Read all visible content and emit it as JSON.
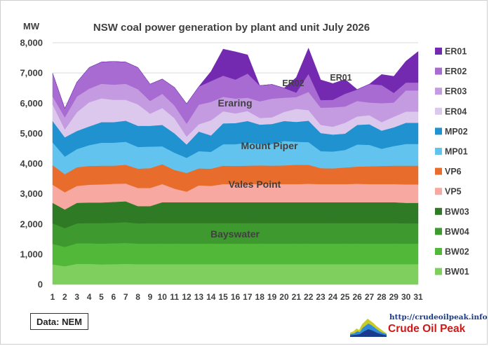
{
  "chart_data": {
    "type": "area",
    "stacked": true,
    "title": "NSW coal power generation by plant and unit July 2026",
    "ylabel": "MW",
    "xlabel": "",
    "ylim": [
      0,
      8000
    ],
    "yticks": [
      "0",
      "1,000",
      "2,000",
      "3,000",
      "4,000",
      "5,000",
      "6,000",
      "7,000",
      "8,000"
    ],
    "x": [
      1,
      2,
      3,
      4,
      5,
      6,
      7,
      8,
      9,
      10,
      11,
      12,
      13,
      14,
      15,
      16,
      17,
      18,
      19,
      20,
      21,
      22,
      23,
      24,
      25,
      26,
      27,
      28,
      29,
      30,
      31
    ],
    "grid": true,
    "legend_position": "right",
    "series": [
      {
        "name": "BW01",
        "color": "#7fcf5f",
        "values": [
          660,
          600,
          680,
          680,
          660,
          670,
          680,
          670,
          670,
          670,
          670,
          670,
          670,
          670,
          670,
          670,
          670,
          670,
          670,
          670,
          670,
          670,
          670,
          670,
          670,
          670,
          670,
          670,
          670,
          670,
          670
        ]
      },
      {
        "name": "BW02",
        "color": "#52b83a",
        "values": [
          680,
          640,
          680,
          680,
          690,
          690,
          690,
          680,
          680,
          680,
          680,
          680,
          680,
          680,
          680,
          680,
          680,
          680,
          680,
          680,
          680,
          680,
          680,
          680,
          680,
          680,
          680,
          680,
          680,
          680,
          680
        ]
      },
      {
        "name": "BW04",
        "color": "#3e9a2e",
        "values": [
          680,
          620,
          660,
          670,
          680,
          680,
          690,
          670,
          680,
          680,
          680,
          680,
          680,
          680,
          680,
          680,
          680,
          680,
          680,
          680,
          680,
          680,
          680,
          680,
          680,
          680,
          680,
          680,
          680,
          670,
          670
        ]
      },
      {
        "name": "BW03",
        "color": "#2f7a24",
        "values": [
          680,
          620,
          680,
          680,
          680,
          690,
          690,
          570,
          560,
          690,
          690,
          690,
          690,
          690,
          690,
          690,
          690,
          690,
          690,
          690,
          690,
          690,
          690,
          690,
          690,
          690,
          690,
          690,
          690,
          680,
          680
        ]
      },
      {
        "name": "VP5",
        "color": "#f7a8a0",
        "values": [
          600,
          570,
          560,
          590,
          600,
          600,
          590,
          600,
          600,
          600,
          450,
          350,
          560,
          540,
          600,
          600,
          600,
          600,
          600,
          600,
          600,
          610,
          600,
          600,
          600,
          610,
          600,
          600,
          600,
          610,
          610
        ]
      },
      {
        "name": "VP6",
        "color": "#e86d2c",
        "values": [
          650,
          600,
          620,
          620,
          620,
          600,
          620,
          640,
          660,
          660,
          620,
          620,
          560,
          570,
          610,
          600,
          610,
          620,
          610,
          620,
          640,
          630,
          530,
          520,
          550,
          570,
          590,
          600,
          610,
          620,
          620
        ]
      },
      {
        "name": "MP01",
        "color": "#62c4ee",
        "values": [
          750,
          580,
          600,
          690,
          760,
          760,
          760,
          720,
          710,
          590,
          570,
          500,
          570,
          560,
          710,
          720,
          760,
          710,
          720,
          810,
          760,
          750,
          560,
          560,
          580,
          730,
          710,
          570,
          650,
          720,
          720
        ]
      },
      {
        "name": "MP02",
        "color": "#1f92cf",
        "values": [
          710,
          640,
          600,
          620,
          680,
          680,
          700,
          700,
          690,
          710,
          640,
          440,
          650,
          540,
          690,
          700,
          720,
          640,
          660,
          660,
          660,
          710,
          600,
          560,
          540,
          650,
          680,
          600,
          620,
          700,
          700
        ]
      },
      {
        "name": "ER04",
        "color": "#dcc8ec",
        "values": [
          550,
          260,
          620,
          800,
          790,
          740,
          690,
          710,
          400,
          560,
          500,
          260,
          240,
          500,
          400,
          320,
          330,
          220,
          220,
          300,
          430,
          350,
          270,
          260,
          360,
          280,
          300,
          280,
          350,
          370,
          370
        ]
      },
      {
        "name": "ER03",
        "color": "#c49be1",
        "values": [
          260,
          400,
          520,
          450,
          480,
          500,
          530,
          500,
          420,
          470,
          420,
          430,
          650,
          610,
          480,
          490,
          440,
          550,
          620,
          470,
          390,
          600,
          570,
          640,
          540,
          510,
          420,
          630,
          470,
          700,
          700
        ]
      },
      {
        "name": "ER02",
        "color": "#a86bd2",
        "values": [
          770,
          290,
          480,
          700,
          720,
          770,
          720,
          720,
          560,
          490,
          600,
          660,
          600,
          690,
          700,
          630,
          800,
          520,
          470,
          320,
          150,
          600,
          250,
          250,
          420,
          380,
          610,
          600,
          320,
          260,
          260
        ]
      },
      {
        "name": "ER01",
        "color": "#742ab0",
        "values": [
          0,
          0,
          0,
          0,
          0,
          0,
          0,
          0,
          0,
          0,
          0,
          0,
          0,
          320,
          880,
          920,
          620,
          0,
          0,
          0,
          500,
          850,
          670,
          540,
          480,
          0,
          0,
          350,
          550,
          710,
          1030
        ]
      }
    ],
    "annotations": [
      "Bayswater",
      "Vales Point",
      "Mount Piper",
      "Eraring",
      "ER02",
      "ER01"
    ]
  },
  "footer": {
    "source": "Data: NEM",
    "logo_url": "http://crudeoilpeak.info",
    "logo_name": "Crude Oil Peak"
  }
}
